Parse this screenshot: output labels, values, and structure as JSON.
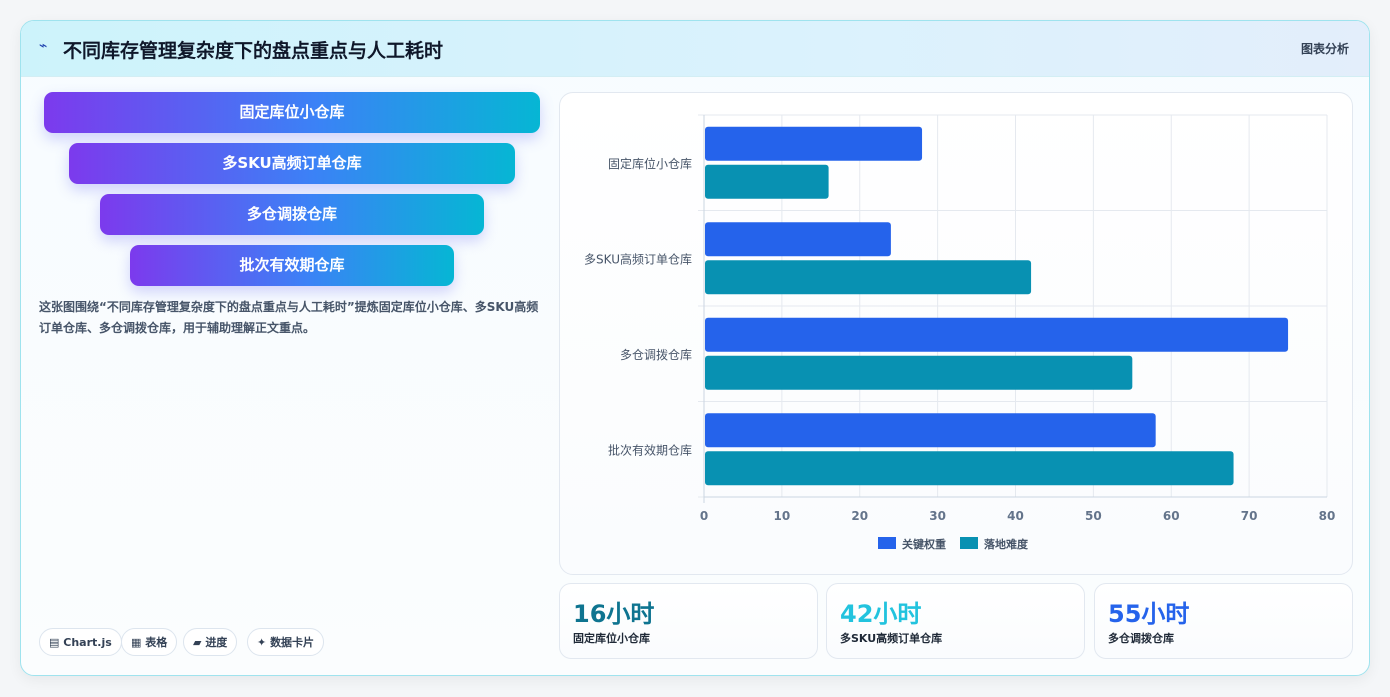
{
  "header": {
    "logo_icon": "sparkline-icon",
    "logo_glyph": "⌁",
    "title": "不同库存管理复杂度下的盘点重点与人工耗时",
    "tag": "图表分析"
  },
  "funnel": [
    "固定库位小仓库",
    "多SKU高频订单仓库",
    "多仓调拨仓库",
    "批次有效期仓库"
  ],
  "description": "这张图围绕“不同库存管理复杂度下的盘点重点与人工耗时”提炼固定库位小仓库、多SKU高频订单仓库、多仓调拨仓库，用于辅助理解正文重点。",
  "chips": [
    {
      "icon": "chart-icon",
      "glyph": "▤",
      "label": "Chart.js"
    },
    {
      "icon": "table-icon",
      "glyph": "▦",
      "label": "表格"
    },
    {
      "icon": "progress-icon",
      "glyph": "▰",
      "label": "进度"
    },
    {
      "icon": "sparkle-icon",
      "glyph": "✦",
      "label": "数据卡片"
    }
  ],
  "stats": [
    {
      "value": "16小时",
      "label": "固定库位小仓库",
      "color": "#0e7490"
    },
    {
      "value": "42小时",
      "label": "多SKU高频订单仓库",
      "color": "#22c3de"
    },
    {
      "value": "55小时",
      "label": "多仓调拨仓库",
      "color": "#2563eb"
    }
  ],
  "chart_data": {
    "type": "bar",
    "orientation": "horizontal",
    "categories": [
      "固定库位小仓库",
      "多SKU高频订单仓库",
      "多仓调拨仓库",
      "批次有效期仓库"
    ],
    "series": [
      {
        "name": "关键权重",
        "values": [
          28,
          24,
          75,
          58
        ],
        "color": "#2563eb"
      },
      {
        "name": "落地难度",
        "values": [
          16,
          42,
          55,
          68
        ],
        "color": "#0891b2"
      }
    ],
    "xlim": [
      0,
      80
    ],
    "xticks": [
      0,
      10,
      20,
      30,
      40,
      50,
      60,
      70,
      80
    ],
    "grid": true,
    "legend": "bottom"
  }
}
